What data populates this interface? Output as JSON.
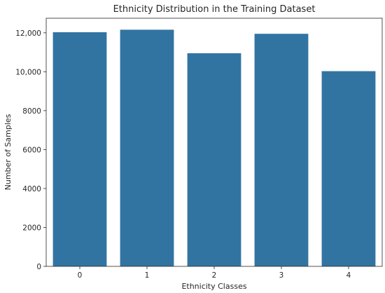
{
  "chart_data": {
    "type": "bar",
    "title": "Ethnicity Distribution in the Training Dataset",
    "xlabel": "Ethnicity Classes",
    "ylabel": "Number of Samples",
    "categories": [
      "0",
      "1",
      "2",
      "3",
      "4"
    ],
    "values": [
      12030,
      12160,
      10950,
      11950,
      10030
    ],
    "ylim": [
      0,
      12750
    ],
    "yticks": [
      0,
      2000,
      4000,
      6000,
      8000,
      10000,
      12000
    ],
    "ytick_labels": [
      "0",
      "2000",
      "4000",
      "6000",
      "8000",
      "10,000",
      "12,000"
    ],
    "bar_color": "#3274a1",
    "grid": false,
    "legend": "none"
  }
}
